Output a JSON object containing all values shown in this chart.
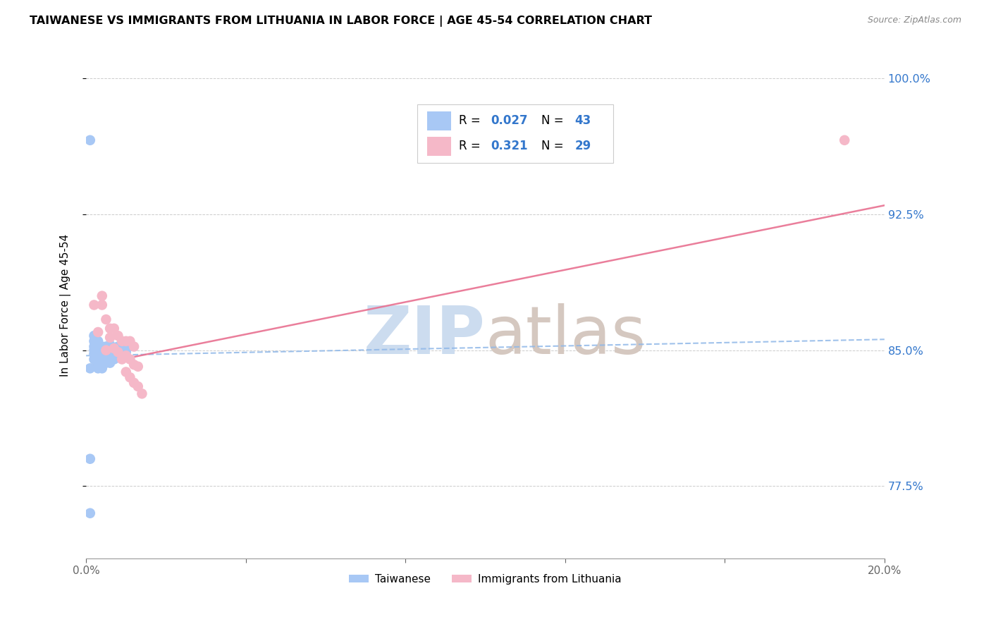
{
  "title": "TAIWANESE VS IMMIGRANTS FROM LITHUANIA IN LABOR FORCE | AGE 45-54 CORRELATION CHART",
  "source": "Source: ZipAtlas.com",
  "ylabel": "In Labor Force | Age 45-54",
  "xlim": [
    0.0,
    0.2
  ],
  "ylim": [
    0.735,
    1.015
  ],
  "yticks": [
    0.775,
    0.85,
    0.925,
    1.0
  ],
  "ytick_labels": [
    "77.5%",
    "85.0%",
    "92.5%",
    "100.0%"
  ],
  "xticks": [
    0.0,
    0.04,
    0.08,
    0.12,
    0.16,
    0.2
  ],
  "color_taiwanese": "#a8c8f5",
  "color_lithuania": "#f5b8c8",
  "color_tw_line": "#90b8e8",
  "color_lt_line": "#e87090",
  "color_blue": "#3377cc",
  "color_pink": "#e87090",
  "taiwanese_x": [
    0.001,
    0.001,
    0.001,
    0.002,
    0.002,
    0.002,
    0.002,
    0.002,
    0.002,
    0.003,
    0.003,
    0.003,
    0.003,
    0.003,
    0.003,
    0.003,
    0.003,
    0.003,
    0.004,
    0.004,
    0.004,
    0.004,
    0.004,
    0.005,
    0.005,
    0.005,
    0.005,
    0.006,
    0.006,
    0.006,
    0.006,
    0.006,
    0.007,
    0.007,
    0.007,
    0.008,
    0.008,
    0.008,
    0.009,
    0.009,
    0.01,
    0.01,
    0.001
  ],
  "taiwanese_y": [
    0.76,
    0.79,
    0.84,
    0.845,
    0.848,
    0.85,
    0.852,
    0.855,
    0.858,
    0.84,
    0.843,
    0.845,
    0.847,
    0.848,
    0.85,
    0.851,
    0.853,
    0.855,
    0.84,
    0.843,
    0.847,
    0.849,
    0.852,
    0.843,
    0.846,
    0.849,
    0.852,
    0.843,
    0.847,
    0.849,
    0.851,
    0.853,
    0.845,
    0.848,
    0.851,
    0.846,
    0.849,
    0.852,
    0.848,
    0.851,
    0.849,
    0.852,
    0.966
  ],
  "lithuania_x": [
    0.002,
    0.003,
    0.004,
    0.004,
    0.005,
    0.005,
    0.006,
    0.006,
    0.007,
    0.007,
    0.008,
    0.008,
    0.009,
    0.009,
    0.01,
    0.01,
    0.01,
    0.011,
    0.011,
    0.011,
    0.012,
    0.012,
    0.012,
    0.013,
    0.013,
    0.014,
    0.19
  ],
  "lithuania_y": [
    0.875,
    0.86,
    0.875,
    0.88,
    0.85,
    0.867,
    0.857,
    0.862,
    0.851,
    0.862,
    0.849,
    0.858,
    0.845,
    0.855,
    0.838,
    0.847,
    0.855,
    0.835,
    0.845,
    0.855,
    0.832,
    0.842,
    0.852,
    0.83,
    0.841,
    0.826,
    0.966
  ],
  "watermark_zip_color": "#ccdcef",
  "watermark_atlas_color": "#d5c8c0"
}
